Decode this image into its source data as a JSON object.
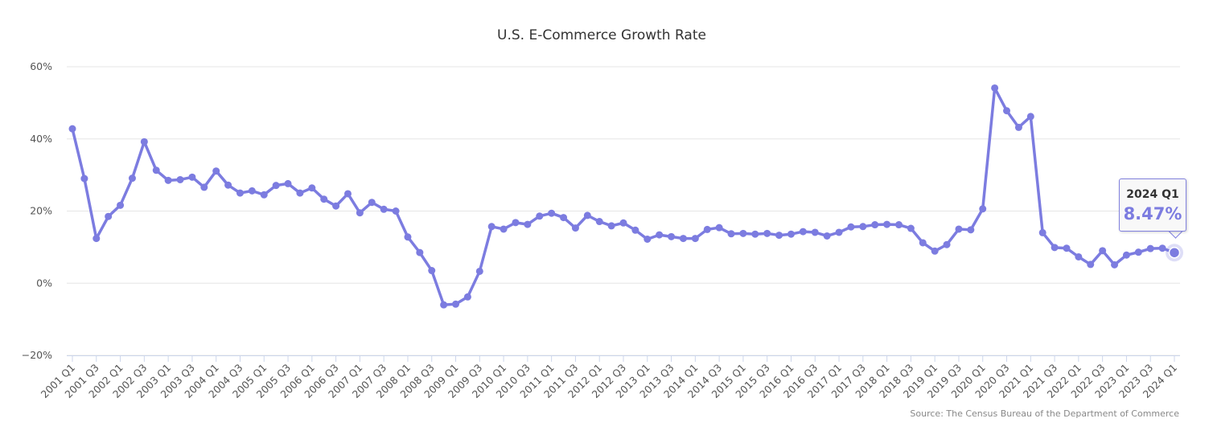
{
  "chart_data": {
    "type": "line",
    "title": "U.S. E-Commerce Growth Rate",
    "source": "Source: The Census Bureau of the Department of Commerce",
    "ylim": [
      -20,
      60
    ],
    "yticks": [
      -20,
      0,
      20,
      40,
      60
    ],
    "ytick_labels": [
      "−20%",
      "0%",
      "20%",
      "40%",
      "60%"
    ],
    "x_tick_labels": [
      "2001 Q1",
      "2001 Q3",
      "2002 Q1",
      "2002 Q3",
      "2003 Q1",
      "2003 Q3",
      "2004 Q1",
      "2004 Q3",
      "2005 Q1",
      "2005 Q3",
      "2006 Q1",
      "2006 Q3",
      "2007 Q1",
      "2007 Q3",
      "2008 Q1",
      "2008 Q3",
      "2009 Q1",
      "2009 Q3",
      "2010 Q1",
      "2010 Q3",
      "2011 Q1",
      "2011 Q3",
      "2012 Q1",
      "2012 Q3",
      "2013 Q1",
      "2013 Q3",
      "2014 Q1",
      "2014 Q3",
      "2015 Q1",
      "2015 Q3",
      "2016 Q1",
      "2016 Q3",
      "2017 Q1",
      "2017 Q3",
      "2018 Q1",
      "2018 Q3",
      "2019 Q1",
      "2019 Q3",
      "2020 Q1",
      "2020 Q3",
      "2021 Q1",
      "2021 Q3",
      "2022 Q1",
      "2022 Q3",
      "2023 Q1",
      "2023 Q3",
      "2024 Q1"
    ],
    "x": [
      "2001 Q1",
      "2001 Q2",
      "2001 Q3",
      "2001 Q4",
      "2002 Q1",
      "2002 Q2",
      "2002 Q3",
      "2002 Q4",
      "2003 Q1",
      "2003 Q2",
      "2003 Q3",
      "2003 Q4",
      "2004 Q1",
      "2004 Q2",
      "2004 Q3",
      "2004 Q4",
      "2005 Q1",
      "2005 Q2",
      "2005 Q3",
      "2005 Q4",
      "2006 Q1",
      "2006 Q2",
      "2006 Q3",
      "2006 Q4",
      "2007 Q1",
      "2007 Q2",
      "2007 Q3",
      "2007 Q4",
      "2008 Q1",
      "2008 Q2",
      "2008 Q3",
      "2008 Q4",
      "2009 Q1",
      "2009 Q2",
      "2009 Q3",
      "2009 Q4",
      "2010 Q1",
      "2010 Q2",
      "2010 Q3",
      "2010 Q4",
      "2011 Q1",
      "2011 Q2",
      "2011 Q3",
      "2011 Q4",
      "2012 Q1",
      "2012 Q2",
      "2012 Q3",
      "2012 Q4",
      "2013 Q1",
      "2013 Q2",
      "2013 Q3",
      "2013 Q4",
      "2014 Q1",
      "2014 Q2",
      "2014 Q3",
      "2014 Q4",
      "2015 Q1",
      "2015 Q2",
      "2015 Q3",
      "2015 Q4",
      "2016 Q1",
      "2016 Q2",
      "2016 Q3",
      "2016 Q4",
      "2017 Q1",
      "2017 Q2",
      "2017 Q3",
      "2017 Q4",
      "2018 Q1",
      "2018 Q2",
      "2018 Q3",
      "2018 Q4",
      "2019 Q1",
      "2019 Q2",
      "2019 Q3",
      "2019 Q4",
      "2020 Q1",
      "2020 Q2",
      "2020 Q3",
      "2020 Q4",
      "2021 Q1",
      "2021 Q2",
      "2021 Q3",
      "2021 Q4",
      "2022 Q1",
      "2022 Q2",
      "2022 Q3",
      "2022 Q4",
      "2023 Q1",
      "2023 Q2",
      "2023 Q3",
      "2023 Q4",
      "2024 Q1"
    ],
    "series": [
      {
        "values": [
          42.8,
          29.0,
          12.4,
          18.5,
          21.6,
          29.1,
          39.2,
          31.3,
          28.5,
          28.7,
          29.4,
          26.6,
          31.1,
          27.2,
          25.0,
          25.6,
          24.5,
          27.1,
          27.6,
          25.0,
          26.4,
          23.3,
          21.4,
          24.8,
          19.5,
          22.4,
          20.5,
          20.0,
          12.8,
          8.5,
          3.5,
          -6.0,
          -5.8,
          -3.8,
          3.3,
          15.7,
          15.0,
          16.8,
          16.3,
          18.6,
          19.4,
          18.2,
          15.3,
          18.8,
          17.1,
          15.9,
          16.7,
          14.7,
          12.2,
          13.4,
          12.9,
          12.4,
          12.4,
          14.9,
          15.4,
          13.7,
          13.8,
          13.6,
          13.8,
          13.3,
          13.6,
          14.3,
          14.1,
          13.1,
          14.1,
          15.6,
          15.7,
          16.2,
          16.3,
          16.2,
          15.2,
          11.2,
          8.9,
          10.7,
          15.0,
          14.8,
          20.6,
          54.1,
          47.8,
          43.2,
          46.2,
          14.0,
          9.9,
          9.7,
          7.3,
          5.2,
          9.0,
          5.1,
          7.8,
          8.6,
          9.6,
          9.7,
          8.47
        ]
      }
    ],
    "line_color": "#7c7ce0",
    "tooltip": {
      "label": "2024 Q1",
      "value": "8.47%"
    }
  }
}
